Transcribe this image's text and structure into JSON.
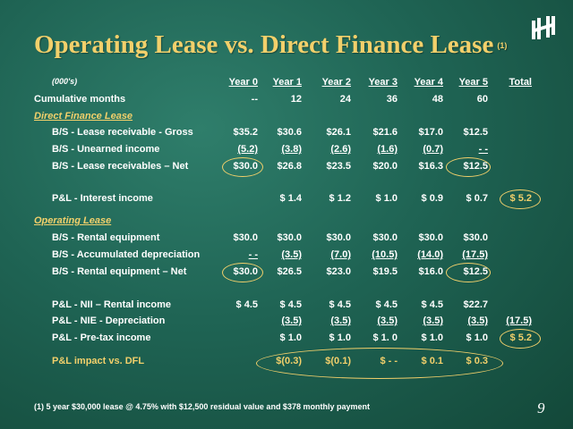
{
  "title": "Operating Lease vs. Direct Finance Lease",
  "title_note": "(1)",
  "units": "(000's)",
  "columns": [
    "Year 0",
    "Year 1",
    "Year 2",
    "Year 3",
    "Year 4",
    "Year 5",
    "Total"
  ],
  "cumulative": {
    "label": "Cumulative months",
    "values": [
      "--",
      "12",
      "24",
      "36",
      "48",
      "60",
      ""
    ]
  },
  "dfl": {
    "heading": "Direct Finance Lease",
    "gross": {
      "label": "B/S - Lease receivable - Gross",
      "values": [
        "$35.2",
        "$30.6",
        "$26.1",
        "$21.6",
        "$17.0",
        "$12.5",
        ""
      ]
    },
    "unearned": {
      "label": "B/S - Unearned income",
      "values": [
        "(5.2)",
        "(3.8)",
        "(2.6)",
        "(1.6)",
        "(0.7)",
        "- -",
        ""
      ]
    },
    "net": {
      "label": "B/S - Lease receivables – Net",
      "values": [
        "$30.0",
        "$26.8",
        "$23.5",
        "$20.0",
        "$16.3",
        "$12.5",
        ""
      ]
    },
    "interest": {
      "label": "P&L - Interest income",
      "values": [
        "",
        "$ 1.4",
        "$ 1.2",
        "$ 1.0",
        "$ 0.9",
        "$ 0.7",
        "$ 5.2"
      ]
    }
  },
  "ol": {
    "heading": "Operating Lease",
    "equipment": {
      "label": "B/S - Rental equipment",
      "values": [
        "$30.0",
        "$30.0",
        "$30.0",
        "$30.0",
        "$30.0",
        "$30.0",
        ""
      ]
    },
    "accum": {
      "label": "B/S - Accumulated depreciation",
      "values": [
        "- -",
        "(3.5)",
        "(7.0)",
        "(10.5)",
        "(14.0)",
        "(17.5)",
        ""
      ]
    },
    "net": {
      "label": "B/S - Rental equipment – Net",
      "values": [
        "$30.0",
        "$26.5",
        "$23.0",
        "$19.5",
        "$16.0",
        "$12.5",
        ""
      ]
    },
    "nii": {
      "label": "P&L - NII – Rental income",
      "values": [
        "$ 4.5",
        "$ 4.5",
        "$ 4.5",
        "$ 4.5",
        "$ 4.5",
        "$22.7",
        ""
      ]
    },
    "nie": {
      "label": "P&L - NIE - Depreciation",
      "values": [
        "",
        "(3.5)",
        "(3.5)",
        "(3.5)",
        "(3.5)",
        "(3.5)",
        "(17.5)"
      ]
    },
    "pretax": {
      "label": "P&L - Pre-tax income",
      "values": [
        "",
        "$ 1.0",
        "$ 1.0",
        "$ 1. 0",
        "$ 1.0",
        "$ 1.0",
        "$ 5.2"
      ]
    }
  },
  "impact": {
    "label": "P&L impact vs. DFL",
    "values": [
      "",
      "$(0.3)",
      "$(0.1)",
      "$ - -",
      "$ 0.1",
      "$ 0.3",
      ""
    ]
  },
  "footnote": "(1) 5 year $30,000 lease @ 4.75% with $12,500 residual value and $378 monthly payment",
  "page_number": "9",
  "logo_icon": "company-logo-icon",
  "accent_color": "#f2d06b"
}
